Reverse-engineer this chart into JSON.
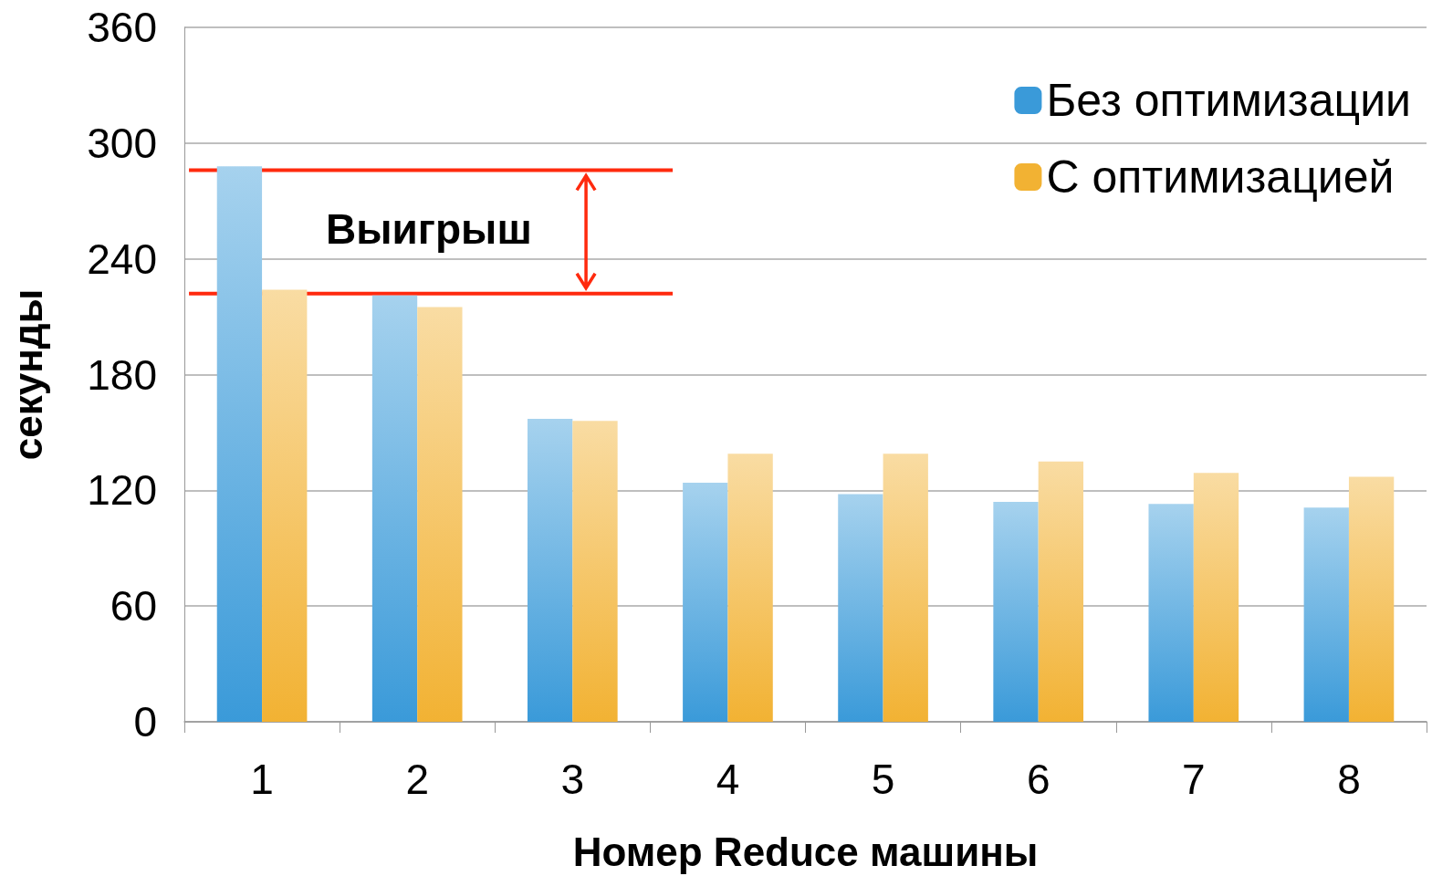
{
  "chart_data": {
    "type": "bar",
    "xlabel": "Номер Reduce машины",
    "ylabel": "секунды",
    "categories": [
      "1",
      "2",
      "3",
      "4",
      "5",
      "6",
      "7",
      "8"
    ],
    "series": [
      {
        "name": "Без оптимизации",
        "color": "#3a9ad9",
        "values": [
          288,
          221,
          157,
          124,
          118,
          114,
          113,
          111
        ]
      },
      {
        "name": "С оптимизацией",
        "color": "#f2b233",
        "values": [
          224,
          215,
          156,
          139,
          139,
          135,
          129,
          127
        ]
      }
    ],
    "ylim": [
      0,
      360
    ],
    "yticks": [
      0,
      60,
      120,
      180,
      240,
      300,
      360
    ],
    "grid": "y",
    "legend": "top right",
    "ref_lines": [
      {
        "axis": "y",
        "value": 286,
        "color": "#ff2a0e"
      },
      {
        "axis": "y",
        "value": 222,
        "color": "#ff2a0e"
      }
    ],
    "annotations": [
      "Выигрыш"
    ]
  }
}
